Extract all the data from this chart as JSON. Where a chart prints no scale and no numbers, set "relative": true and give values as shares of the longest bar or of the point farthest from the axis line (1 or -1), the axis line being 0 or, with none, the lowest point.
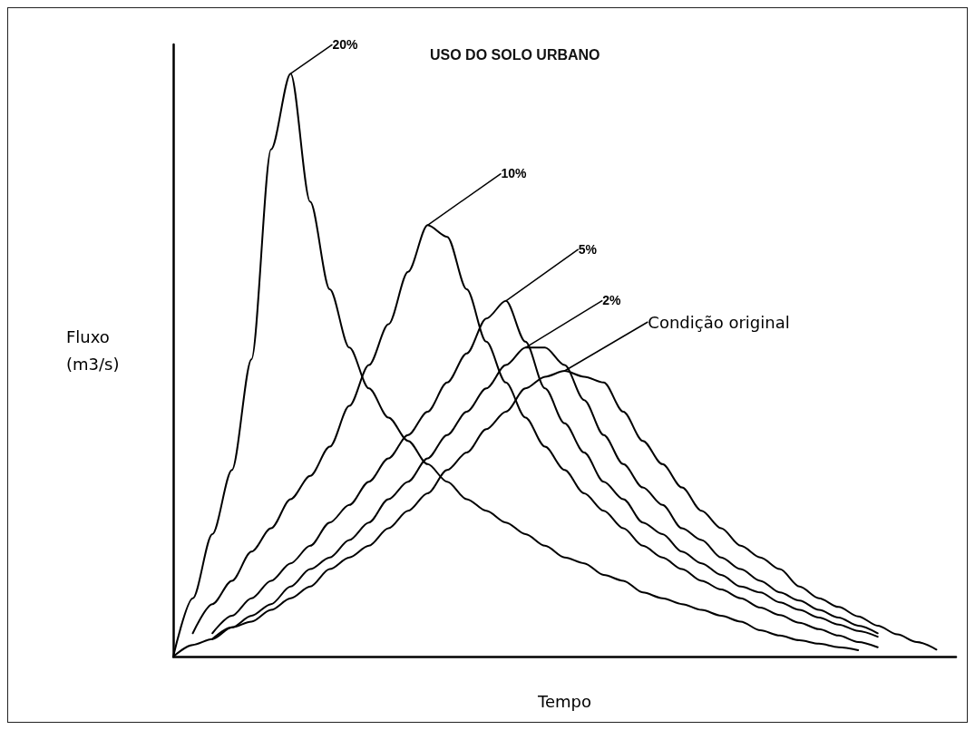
{
  "chart_data": {
    "type": "line",
    "title": "USO DO SOLO URBANO",
    "xlabel": "Tempo",
    "ylabel": "Fluxo (m3/s)",
    "relative": true,
    "legend": false,
    "grid": false,
    "marker": "none",
    "line_style": "solid",
    "categories": [
      null,
      null,
      null,
      null,
      null,
      null,
      null,
      null,
      null,
      null,
      null,
      null,
      null,
      null,
      null,
      null,
      null,
      null,
      null,
      null,
      null,
      null,
      null,
      null,
      null,
      null,
      null,
      null,
      null,
      null,
      null,
      null,
      null,
      null,
      null,
      null,
      null,
      null,
      null,
      null,
      null
    ],
    "series": [
      {
        "name": "20%",
        "color": "#000000",
        "values": [
          0,
          0.1,
          0.21,
          0.32,
          0.51,
          0.87,
          1,
          0.78,
          0.63,
          0.53,
          0.46,
          0.41,
          0.37,
          0.33,
          0.3,
          0.27,
          0.25,
          0.23,
          0.21,
          0.19,
          0.17,
          0.16,
          0.14,
          0.13,
          0.11,
          0.1,
          0.09,
          0.08,
          0.07,
          0.06,
          0.045,
          0.036,
          0.028,
          0.022,
          0.016,
          0.011,
          null,
          null,
          null,
          null,
          null
        ]
      },
      {
        "name": "10%",
        "color": "#000000",
        "values": [
          null,
          0.04,
          0.09,
          0.13,
          0.18,
          0.22,
          0.27,
          0.31,
          0.36,
          0.43,
          0.5,
          0.57,
          0.66,
          0.74,
          0.72,
          0.63,
          0.54,
          0.47,
          0.41,
          0.36,
          0.32,
          0.28,
          0.25,
          0.22,
          0.19,
          0.17,
          0.15,
          0.13,
          0.115,
          0.1,
          0.084,
          0.071,
          0.058,
          0.047,
          0.036,
          0.025,
          0.016,
          null,
          null,
          null,
          null
        ]
      },
      {
        "name": "5%",
        "color": "#000000",
        "values": [
          null,
          null,
          0.04,
          0.07,
          0.1,
          0.13,
          0.16,
          0.19,
          0.23,
          0.26,
          0.3,
          0.34,
          0.38,
          0.42,
          0.47,
          0.52,
          0.58,
          0.61,
          0.54,
          0.46,
          0.4,
          0.35,
          0.3,
          0.27,
          0.23,
          0.21,
          0.18,
          0.16,
          0.14,
          0.12,
          0.11,
          0.093,
          0.08,
          0.067,
          0.055,
          0.044,
          0.034,
          null,
          null,
          null,
          null
        ]
      },
      {
        "name": "2%",
        "color": "#000000",
        "values": [
          null,
          null,
          0.03,
          0.05,
          0.07,
          0.09,
          0.12,
          0.15,
          0.17,
          0.2,
          0.23,
          0.27,
          0.3,
          0.34,
          0.38,
          0.42,
          0.46,
          0.5,
          0.53,
          0.53,
          0.5,
          0.44,
          0.38,
          0.33,
          0.29,
          0.26,
          0.22,
          0.2,
          0.17,
          0.15,
          0.13,
          0.11,
          0.096,
          0.08,
          0.067,
          0.053,
          0.04,
          null,
          null,
          null,
          null
        ]
      },
      {
        "name": "Condição original",
        "color": "#000000",
        "values": [
          0,
          0.02,
          0.03,
          0.05,
          0.06,
          0.08,
          0.1,
          0.12,
          0.15,
          0.17,
          0.19,
          0.22,
          0.25,
          0.28,
          0.32,
          0.35,
          0.39,
          0.42,
          0.46,
          0.48,
          0.49,
          0.48,
          0.47,
          0.42,
          0.37,
          0.33,
          0.29,
          0.25,
          0.22,
          0.19,
          0.17,
          0.15,
          0.12,
          0.1,
          0.085,
          0.069,
          0.053,
          0.038,
          0.025,
          0.012,
          null
        ]
      }
    ]
  }
}
